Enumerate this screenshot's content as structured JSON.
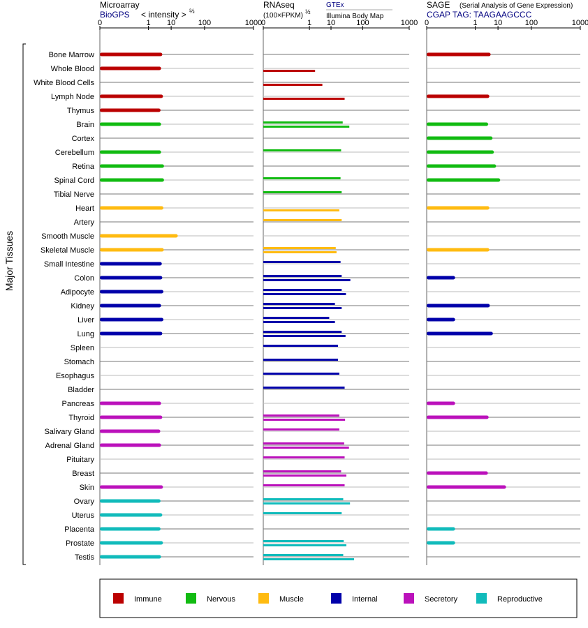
{
  "colors": {
    "Immune": "#bb0000",
    "Nervous": "#11bb11",
    "Muscle": "#ffbb11",
    "Internal": "#0000aa",
    "Secretory": "#bb11bb",
    "Reproductive": "#11bbbb",
    "link": "#000080"
  },
  "headers": {
    "micro_title": "Microarray",
    "micro_source": "BioGPS",
    "micro_unit": "< intensity >",
    "micro_exp": "⅔",
    "rna_title": "RNAseq",
    "rna_unit": "(100×FPKM)",
    "rna_exp": "½",
    "rna_gtex": "GTEx",
    "rna_ibm": "Illumina Body Map",
    "sage_title": "SAGE",
    "sage_desc": "(Serial Analysis of Gene Expression)",
    "sage_tag": "CGAP TAG: TAAGAAGCCC"
  },
  "y_axis_label": "Major Tissues",
  "legend": [
    {
      "name": "Immune"
    },
    {
      "name": "Nervous"
    },
    {
      "name": "Muscle"
    },
    {
      "name": "Internal"
    },
    {
      "name": "Secretory"
    },
    {
      "name": "Reproductive"
    }
  ],
  "chart_data": {
    "type": "bar",
    "x_scale": "power",
    "x_ticks": [
      "0",
      "1",
      "10",
      "100",
      "1000"
    ],
    "xlim": [
      0,
      1000
    ],
    "categories": [
      "Bone Marrow",
      "Whole Blood",
      "White Blood Cells",
      "Lymph Node",
      "Thymus",
      "Brain",
      "Cortex",
      "Cerebellum",
      "Retina",
      "Spinal Cord",
      "Tibial Nerve",
      "Heart",
      "Artery",
      "Smooth Muscle",
      "Skeletal Muscle",
      "Small Intestine",
      "Colon",
      "Adipocyte",
      "Kidney",
      "Liver",
      "Lung",
      "Spleen",
      "Stomach",
      "Esophagus",
      "Bladder",
      "Pancreas",
      "Thyroid",
      "Salivary Gland",
      "Adrenal Gland",
      "Pituitary",
      "Breast",
      "Skin",
      "Ovary",
      "Uterus",
      "Placenta",
      "Prostate",
      "Testis"
    ],
    "groups": [
      "Immune",
      "Immune",
      "Immune",
      "Immune",
      "Immune",
      "Nervous",
      "Nervous",
      "Nervous",
      "Nervous",
      "Nervous",
      "Nervous",
      "Muscle",
      "Muscle",
      "Muscle",
      "Muscle",
      "Internal",
      "Internal",
      "Internal",
      "Internal",
      "Internal",
      "Internal",
      "Internal",
      "Internal",
      "Internal",
      "Internal",
      "Secretory",
      "Secretory",
      "Secretory",
      "Secretory",
      "Secretory",
      "Secretory",
      "Secretory",
      "Reproductive",
      "Reproductive",
      "Reproductive",
      "Reproductive",
      "Reproductive"
    ],
    "series": [
      {
        "name": "Microarray",
        "values": [
          4.5,
          4.0,
          null,
          4.8,
          3.8,
          4.0,
          null,
          4.0,
          5.3,
          5.3,
          null,
          5.0,
          null,
          17,
          5.2,
          4.3,
          4.5,
          5.0,
          4.0,
          5.0,
          4.5,
          null,
          null,
          null,
          null,
          4.0,
          4.5,
          3.7,
          4.0,
          null,
          null,
          4.8,
          3.8,
          4.5,
          3.8,
          4.8,
          4.0
        ]
      },
      {
        "name": "GTEx",
        "values": [
          null,
          null,
          null,
          null,
          null,
          26,
          null,
          23,
          null,
          22,
          24,
          null,
          24,
          null,
          15,
          22,
          24,
          24,
          14,
          8.5,
          24,
          18,
          18,
          20,
          30,
          null,
          20,
          20,
          29,
          30,
          23,
          30,
          27,
          24,
          null,
          28,
          27
        ]
      },
      {
        "name": "Illumina Body Map",
        "values": [
          null,
          2.0,
          4.4,
          30,
          null,
          42,
          null,
          null,
          null,
          null,
          null,
          20,
          null,
          null,
          16,
          null,
          45,
          33,
          24,
          14,
          32,
          null,
          null,
          null,
          null,
          null,
          31,
          null,
          41,
          null,
          34,
          null,
          44,
          null,
          null,
          34,
          58
        ]
      },
      {
        "name": "SAGE",
        "values": [
          5.2,
          null,
          null,
          4.6,
          null,
          4.1,
          6.2,
          7.0,
          8.5,
          12,
          null,
          4.6,
          null,
          null,
          4.6,
          null,
          0.04,
          null,
          4.8,
          0.04,
          6.4,
          null,
          null,
          null,
          null,
          0.04,
          4.3,
          null,
          null,
          null,
          4.0,
          19,
          null,
          null,
          0.04,
          0.04,
          null
        ]
      }
    ]
  }
}
